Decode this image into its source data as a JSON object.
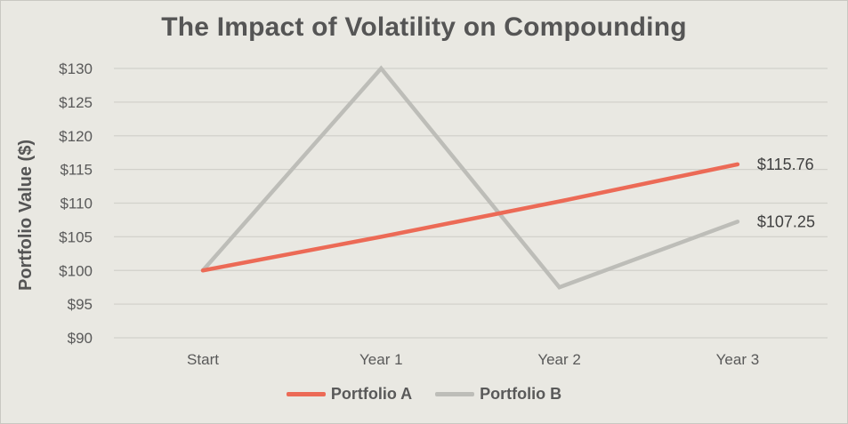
{
  "chart_data": {
    "type": "line",
    "title": "The Impact of Volatility on Compounding",
    "xlabel": "",
    "ylabel": "Portfolio Value ($)",
    "categories": [
      "Start",
      "Year 1",
      "Year 2",
      "Year 3"
    ],
    "ylim": [
      90,
      130
    ],
    "yticks": [
      90,
      95,
      100,
      105,
      110,
      115,
      120,
      125,
      130
    ],
    "ytick_labels": [
      "$90",
      "$95",
      "$100",
      "$105",
      "$110",
      "$115",
      "$120",
      "$125",
      "$130"
    ],
    "grid": true,
    "legend_position": "bottom",
    "series": [
      {
        "name": "Portfolio A",
        "color": "#ec6a56",
        "values": [
          100,
          105,
          110.25,
          115.76
        ],
        "end_label": "$115.76"
      },
      {
        "name": "Portfolio B",
        "color": "#bdbdb8",
        "values": [
          100,
          130,
          97.5,
          107.25
        ],
        "end_label": "$107.25"
      }
    ]
  }
}
